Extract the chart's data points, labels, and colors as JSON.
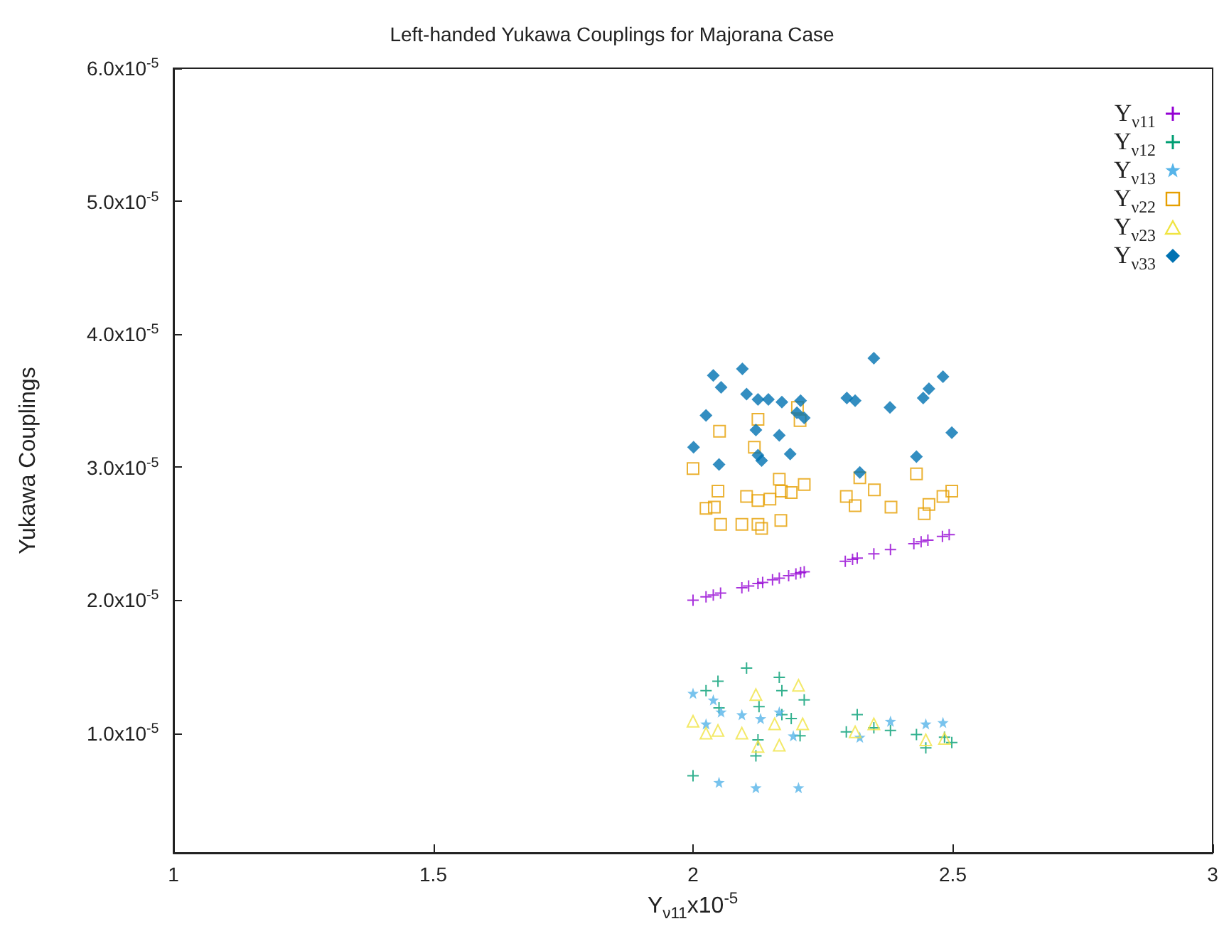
{
  "chart_data": {
    "type": "scatter",
    "title": "Left-handed Yukawa Couplings for Majorana Case",
    "xlabel": "Y$_{ν11}$x10$^{-5}$",
    "ylabel": "Yukawa Couplings",
    "xlim": [
      1,
      3
    ],
    "xticks": [
      1,
      1.5,
      2,
      2.5,
      3
    ],
    "ylim": [
      1e-06,
      6e-05
    ],
    "yticks": [
      {
        "value": 1e-05,
        "label": "1.0x10$^{-5}$"
      },
      {
        "value": 2e-05,
        "label": "2.0x10$^{-5}$"
      },
      {
        "value": 3e-05,
        "label": "3.0x10$^{-5}$"
      },
      {
        "value": 4e-05,
        "label": "4.0x10$^{-5}$"
      },
      {
        "value": 5e-05,
        "label": "5.0x10$^{-5}$"
      },
      {
        "value": 6e-05,
        "label": "6.0x10$^{-5}$"
      }
    ],
    "grid": false,
    "legend": "top right",
    "series": [
      {
        "name": "Y$_{ν11}$",
        "color": "#9400d3",
        "marker": "cross",
        "x": [
          2.0,
          2.025,
          2.039,
          2.053,
          2.094,
          2.107,
          2.125,
          2.134,
          2.153,
          2.166,
          2.184,
          2.198,
          2.207,
          2.214,
          2.293,
          2.307,
          2.316,
          2.348,
          2.38,
          2.425,
          2.439,
          2.452,
          2.48,
          2.493
        ],
        "values": [
          2e-05,
          2.025e-05,
          2.039e-05,
          2.053e-05,
          2.094e-05,
          2.107e-05,
          2.125e-05,
          2.134e-05,
          2.153e-05,
          2.166e-05,
          2.184e-05,
          2.198e-05,
          2.207e-05,
          2.214e-05,
          2.293e-05,
          2.307e-05,
          2.316e-05,
          2.348e-05,
          2.38e-05,
          2.425e-05,
          2.439e-05,
          2.452e-05,
          2.48e-05,
          2.493e-05
        ]
      },
      {
        "name": "Y$_{ν12}$",
        "color": "#009e73",
        "marker": "cross",
        "x": [
          2.0,
          2.025,
          2.048,
          2.05,
          2.103,
          2.127,
          2.121,
          2.125,
          2.166,
          2.171,
          2.214,
          2.206,
          2.171,
          2.316,
          2.295,
          2.348,
          2.43,
          2.448,
          2.484,
          2.498,
          2.38,
          2.189
        ],
        "values": [
          6.8e-06,
          1.32e-05,
          1.39e-05,
          1.19e-05,
          1.49e-05,
          1.2e-05,
          8.3e-06,
          9.5e-06,
          1.42e-05,
          1.32e-05,
          1.25e-05,
          9.8e-06,
          1.14e-05,
          1.14e-05,
          1.01e-05,
          1.04e-05,
          9.9e-06,
          8.9e-06,
          9.7e-06,
          9.3e-06,
          1.02e-05,
          1.11e-05
        ]
      },
      {
        "name": "Y$_{ν13}$",
        "color": "#56b4e9",
        "marker": "star",
        "x": [
          2.0,
          2.05,
          2.121,
          2.203,
          2.039,
          2.094,
          2.13,
          2.166,
          2.193,
          2.025,
          2.321,
          2.38,
          2.448,
          2.481,
          2.054
        ],
        "values": [
          1.3e-05,
          6.3e-06,
          5.9e-06,
          5.9e-06,
          1.25e-05,
          1.14e-05,
          1.11e-05,
          1.16e-05,
          9.8e-06,
          1.07e-05,
          9.7e-06,
          1.09e-05,
          1.07e-05,
          1.08e-05,
          1.16e-05
        ]
      },
      {
        "name": "Y$_{ν22}$",
        "color": "#e69f00",
        "marker": "square",
        "x": [
          2.0,
          2.051,
          2.125,
          2.118,
          2.206,
          2.201,
          2.048,
          2.166,
          2.214,
          2.17,
          2.189,
          2.103,
          2.125,
          2.148,
          2.025,
          2.041,
          2.053,
          2.094,
          2.125,
          2.132,
          2.169,
          2.295,
          2.312,
          2.349,
          2.381,
          2.321,
          2.43,
          2.498,
          2.481,
          2.454,
          2.445
        ],
        "values": [
          2.99e-05,
          3.27e-05,
          3.36e-05,
          3.15e-05,
          3.35e-05,
          3.45e-05,
          2.82e-05,
          2.91e-05,
          2.87e-05,
          2.82e-05,
          2.81e-05,
          2.78e-05,
          2.75e-05,
          2.76e-05,
          2.69e-05,
          2.7e-05,
          2.57e-05,
          2.57e-05,
          2.57e-05,
          2.54e-05,
          2.6e-05,
          2.78e-05,
          2.71e-05,
          2.83e-05,
          2.7e-05,
          2.92e-05,
          2.95e-05,
          2.82e-05,
          2.78e-05,
          2.72e-05,
          2.65e-05
        ]
      },
      {
        "name": "Y$_{ν23}$",
        "color": "#f0e442",
        "marker": "triangle",
        "x": [
          2.0,
          2.048,
          2.121,
          2.125,
          2.203,
          2.211,
          2.094,
          2.166,
          2.312,
          2.348,
          2.448,
          2.484,
          2.157,
          2.025
        ],
        "values": [
          1.09e-05,
          1.02e-05,
          1.29e-05,
          9e-06,
          1.36e-05,
          1.07e-05,
          1e-05,
          9.1e-06,
          1.01e-05,
          1.07e-05,
          9.5e-06,
          9.6e-06,
          1.07e-05,
          1e-05
        ]
      },
      {
        "name": "Y$_{ν33}$",
        "color": "#0072b2",
        "marker": "diamond",
        "x": [
          2.039,
          2.054,
          2.095,
          2.025,
          2.001,
          2.05,
          2.103,
          2.125,
          2.145,
          2.171,
          2.207,
          2.2,
          2.214,
          2.121,
          2.166,
          2.125,
          2.132,
          2.187,
          2.348,
          2.296,
          2.312,
          2.379,
          2.481,
          2.454,
          2.443,
          2.498,
          2.43,
          2.321
        ],
        "values": [
          3.69e-05,
          3.6e-05,
          3.74e-05,
          3.39e-05,
          3.15e-05,
          3.02e-05,
          3.55e-05,
          3.51e-05,
          3.51e-05,
          3.49e-05,
          3.5e-05,
          3.41e-05,
          3.37e-05,
          3.28e-05,
          3.24e-05,
          3.09e-05,
          3.05e-05,
          3.1e-05,
          3.82e-05,
          3.52e-05,
          3.5e-05,
          3.45e-05,
          3.68e-05,
          3.59e-05,
          3.52e-05,
          3.26e-05,
          3.08e-05,
          2.96e-05
        ]
      }
    ]
  }
}
